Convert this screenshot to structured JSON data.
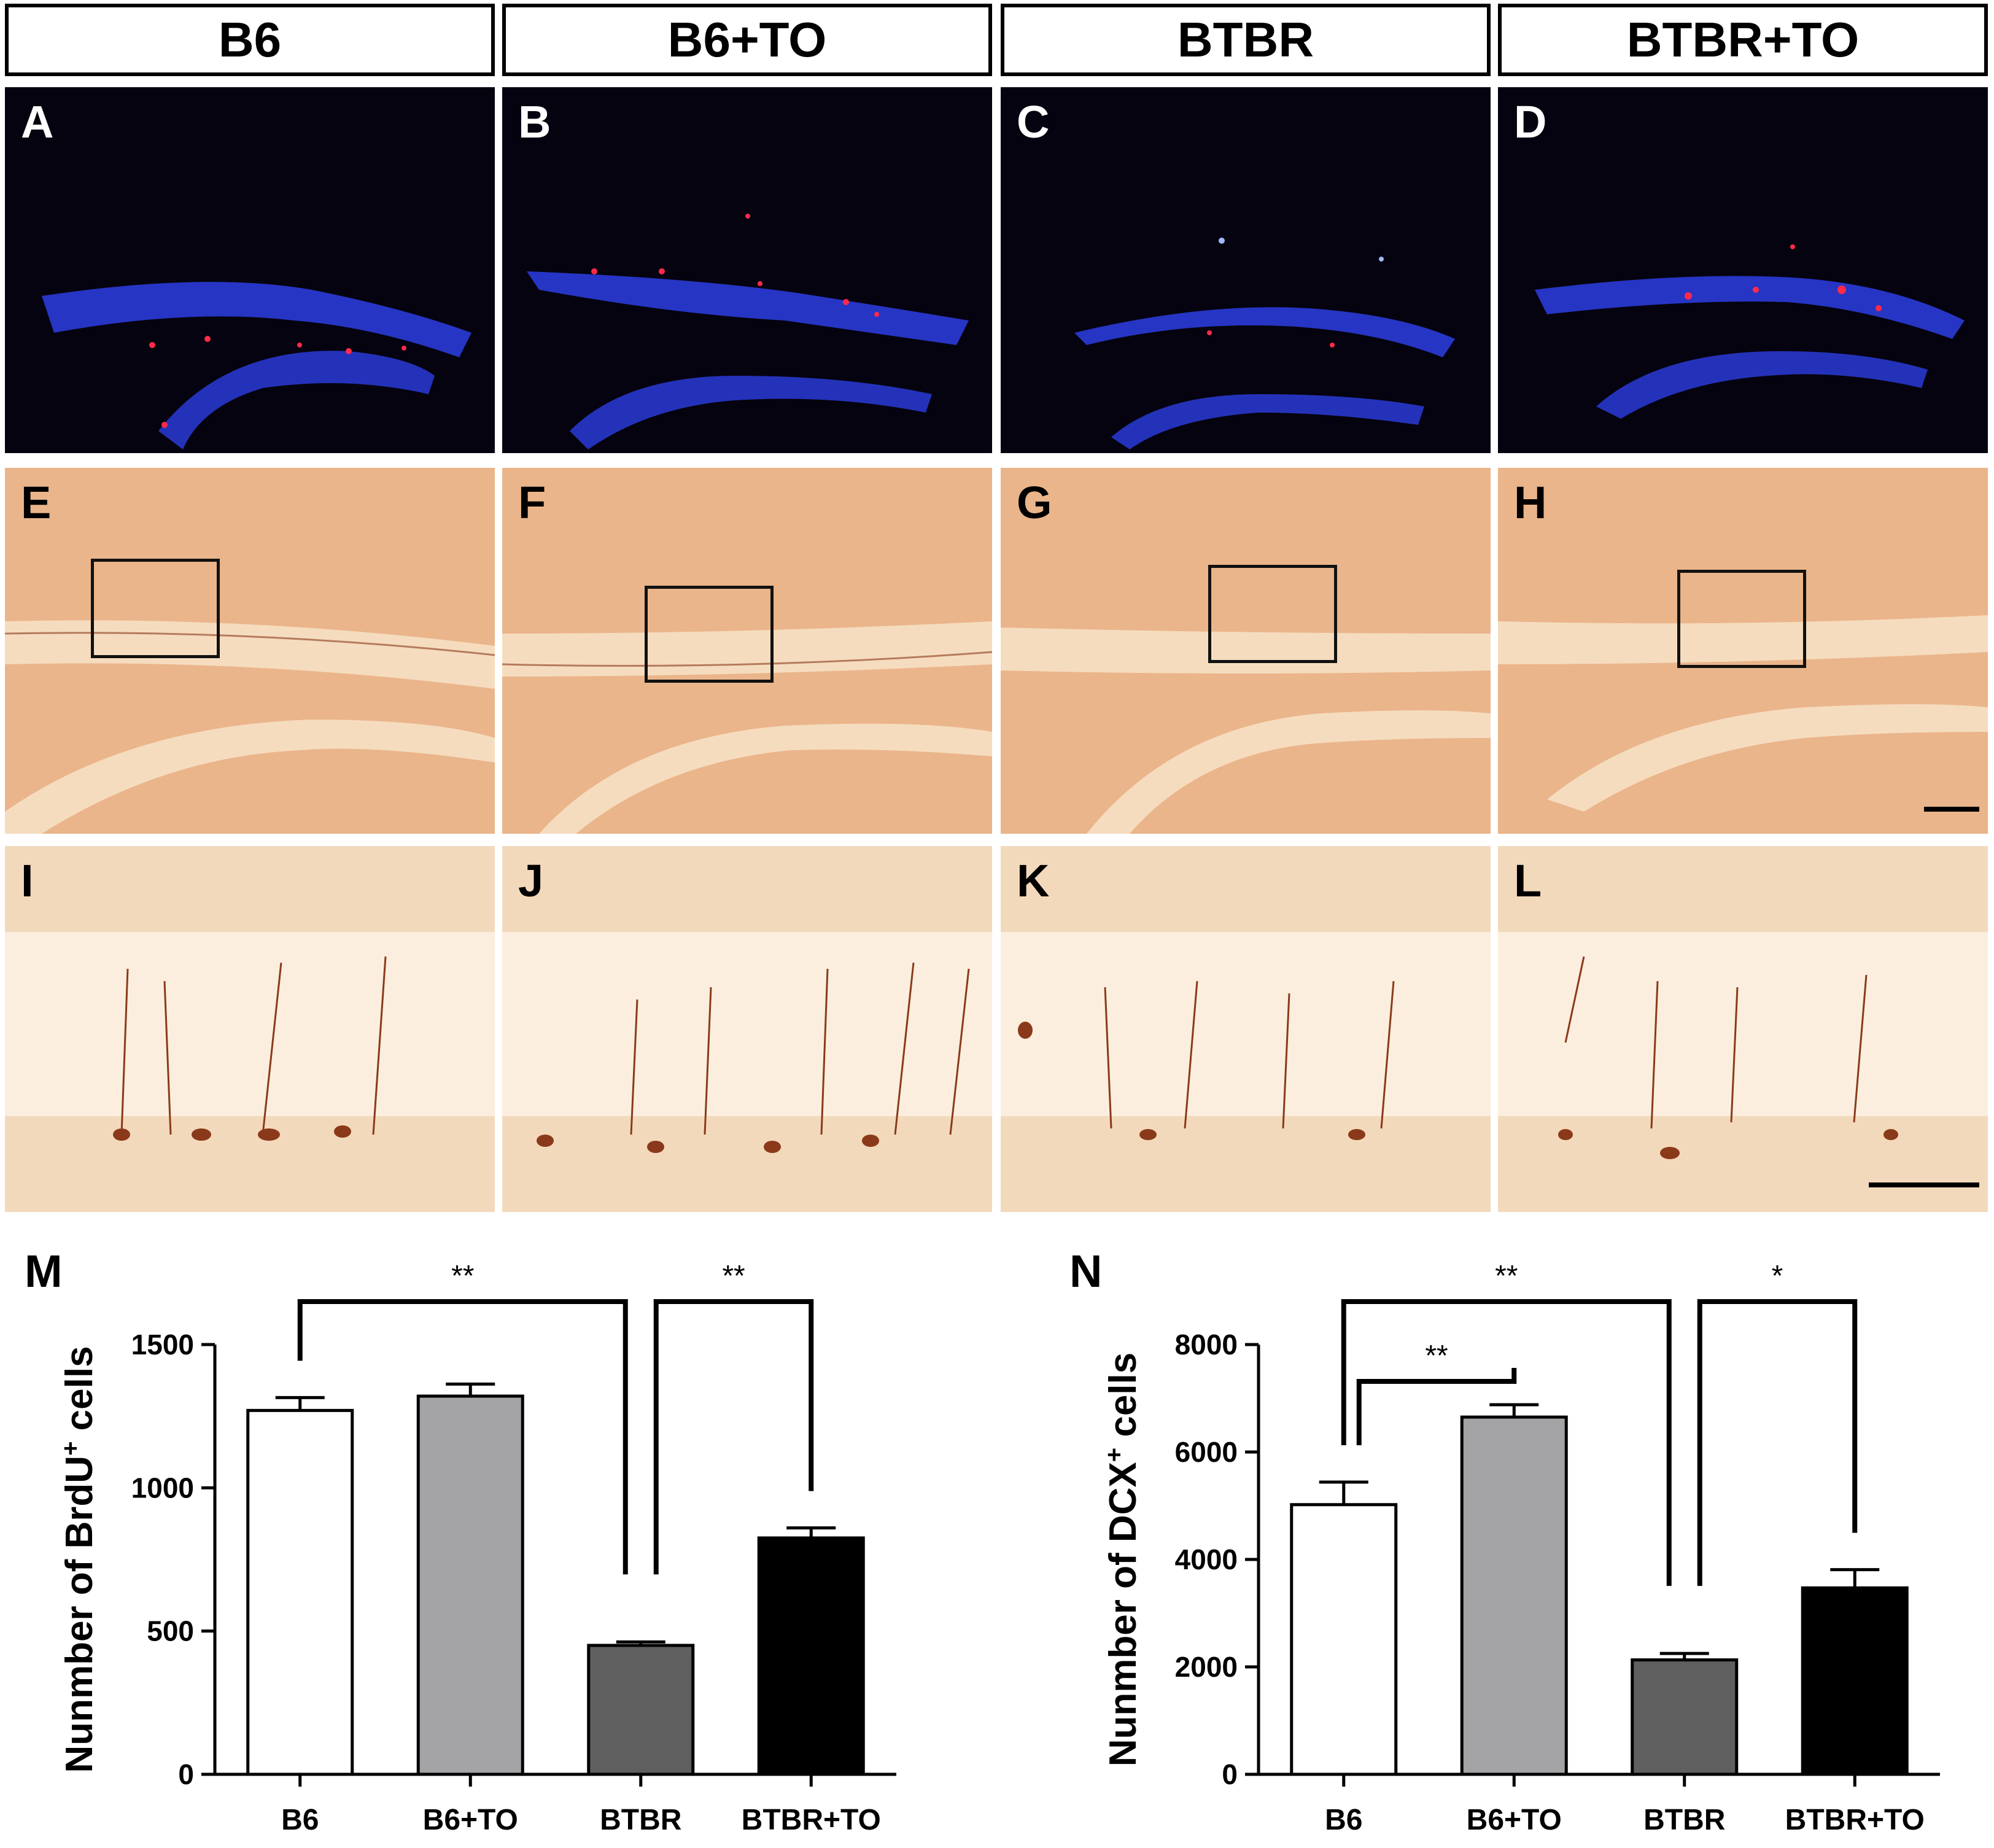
{
  "columns": [
    "B6",
    "B6+TO",
    "BTBR",
    "BTBR+TO"
  ],
  "panel_labels": {
    "row1": [
      "A",
      "B",
      "C",
      "D"
    ],
    "row2": [
      "E",
      "F",
      "G",
      "H"
    ],
    "row3": [
      "I",
      "J",
      "K",
      "L"
    ]
  },
  "chart_labels": [
    "M",
    "N"
  ],
  "colors": {
    "fluorescent_bg": "#05030f",
    "dapi_blue": "#2a3bd8",
    "brdu_red": "#ff2a4a",
    "dab_bg": "#eab58a",
    "dab_stain": "#8a3a1a",
    "bar_b6": "#ffffff",
    "bar_b6to": "#a4a4a7",
    "bar_btbr": "#5f5f5f",
    "bar_btbrto": "#000000"
  },
  "chart_data": [
    {
      "type": "bar",
      "categories": [
        "B6",
        "B6+TO",
        "BTBR",
        "BTBR+TO"
      ],
      "values": [
        1270,
        1320,
        450,
        825
      ],
      "errors": [
        45,
        42,
        12,
        35
      ],
      "ylabel_main": "Nunmber of BrdU",
      "ylabel_sup": "+",
      "ylabel_tail": " cells",
      "ylim": [
        0,
        1500
      ],
      "yticks": [
        0,
        500,
        1000,
        1500
      ],
      "significance": [
        {
          "from": 0,
          "to": 2,
          "label": "**"
        },
        {
          "from": 2,
          "to": 3,
          "label": "**"
        }
      ]
    },
    {
      "type": "bar",
      "categories": [
        "B6",
        "B6+TO",
        "BTBR",
        "BTBR+TO"
      ],
      "values": [
        5020,
        6650,
        2130,
        3470
      ],
      "errors": [
        420,
        230,
        120,
        340
      ],
      "ylabel_main": "Nunmber of DCX",
      "ylabel_sup": "+",
      "ylabel_tail": " cells",
      "ylim": [
        0,
        8000
      ],
      "yticks": [
        0,
        2000,
        4000,
        6000,
        8000
      ],
      "significance": [
        {
          "from": 0,
          "to": 2,
          "label": "**"
        },
        {
          "from": 0,
          "to": 1,
          "label": "**"
        },
        {
          "from": 2,
          "to": 3,
          "label": "*"
        }
      ]
    }
  ]
}
